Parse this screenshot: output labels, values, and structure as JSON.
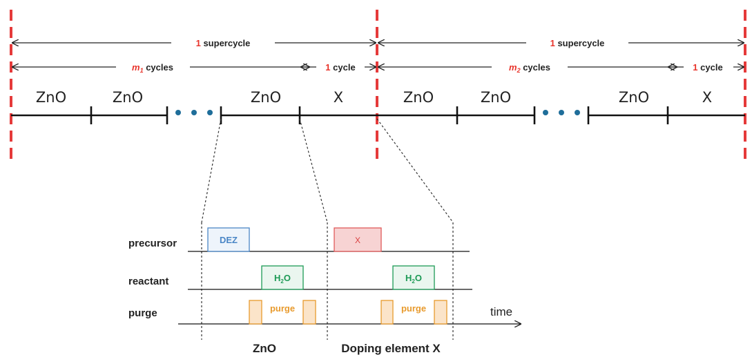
{
  "top": {
    "supercycle_1": {
      "num": "1",
      "text": " supercycle"
    },
    "supercycle_2": {
      "num": "1",
      "text": " supercycle"
    },
    "m1_cycles": {
      "m": "m",
      "sub": "1",
      "text": " cycles"
    },
    "m2_cycles": {
      "m": "m",
      "sub": "2",
      "text": " cycles"
    },
    "one_cycle_1": {
      "num": "1",
      "text": " cycle"
    },
    "one_cycle_2": {
      "num": "1",
      "text": " cycle"
    },
    "segments": [
      "ZnO",
      "ZnO",
      "ZnO",
      "X",
      "ZnO",
      "ZnO",
      "ZnO",
      "X"
    ]
  },
  "bottom": {
    "rows": [
      "precursor",
      "reactant",
      "purge"
    ],
    "precursor_dez": "DEZ",
    "precursor_x": "X",
    "reactant_1": {
      "main": "H",
      "sub": "2",
      "tail": "O"
    },
    "reactant_2": {
      "main": "H",
      "sub": "2",
      "tail": "O"
    },
    "purge_1": "purge",
    "purge_2": "purge",
    "time_label": "time",
    "section_znO": "ZnO",
    "section_x": "Doping element X"
  },
  "colors": {
    "red_dash": "#e53a3a",
    "red_text": "#e8332a",
    "blue": "#4a86c6",
    "blue_fill": "#eef4fb",
    "red_box": "#e05a5a",
    "red_box_fill": "#f7d3d3",
    "green": "#1c9a55",
    "green_fill": "#eaf6ef",
    "orange": "#e89a2c",
    "orange_fill": "#fbe4c9",
    "dot": "#1f6e9a"
  }
}
